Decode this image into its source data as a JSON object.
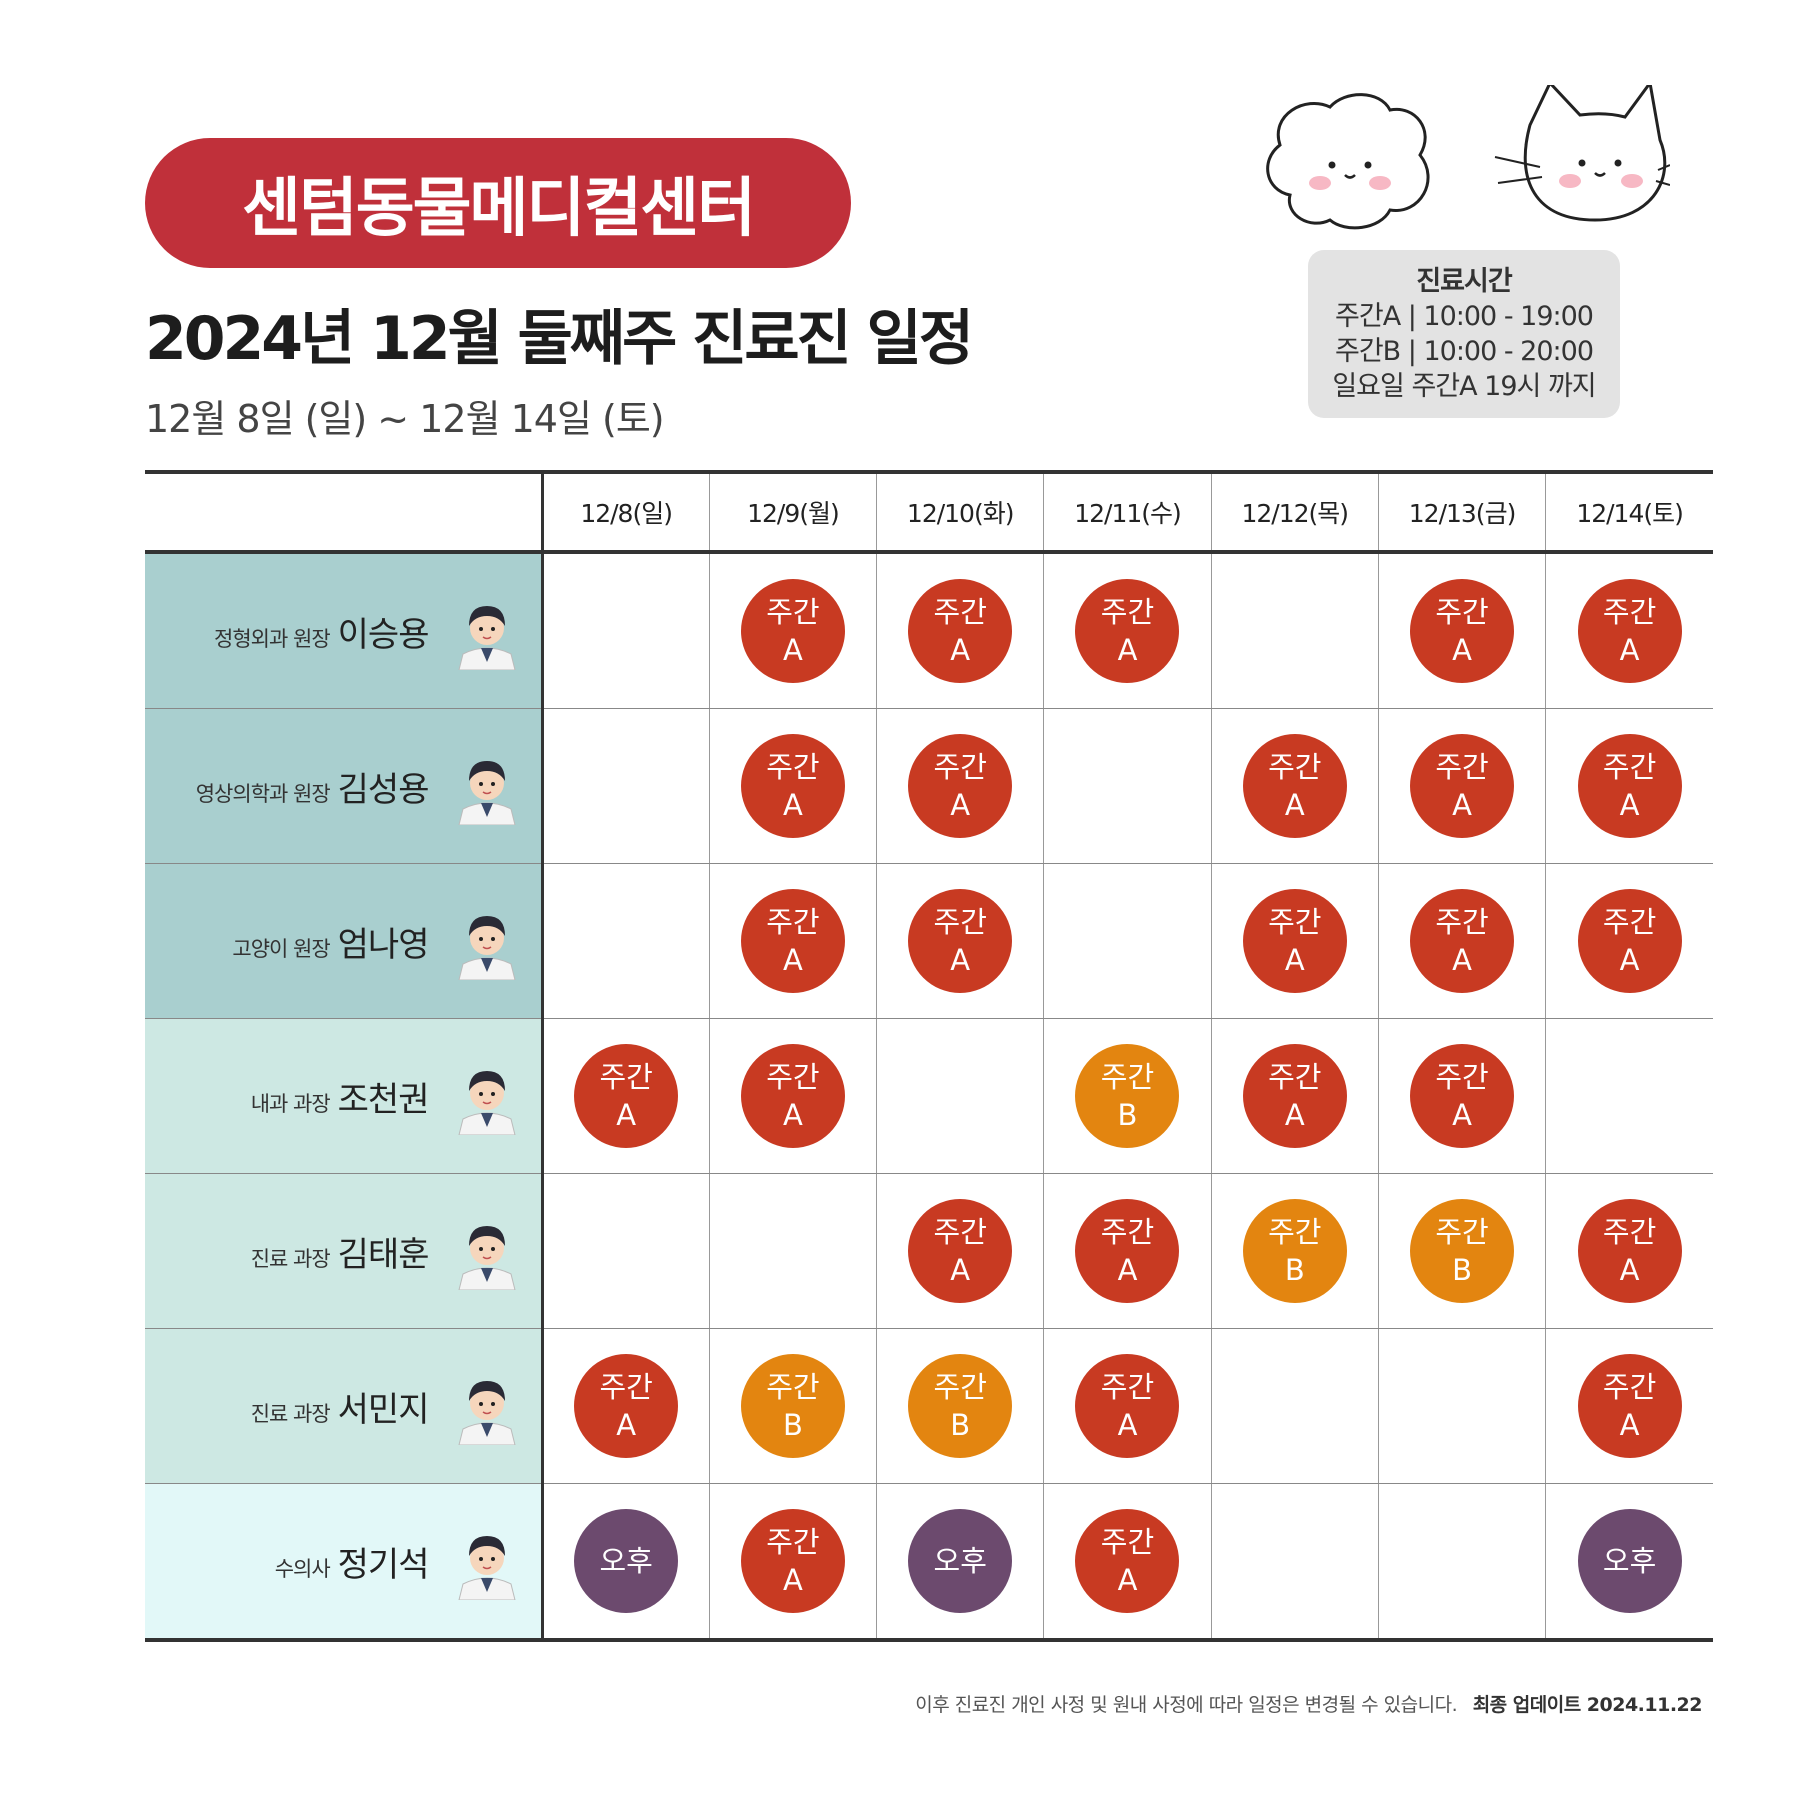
{
  "clinic_name": "센텀동물메디컬센터",
  "title": "2024년 12월 둘째주 진료진 일정",
  "subtitle": "12월 8일 (일) ~ 12월 14일 (토)",
  "hours": {
    "title": "진료시간",
    "line1": "주간A | 10:00 - 19:00",
    "line2": "주간B | 10:00 - 20:00",
    "line3": "일요일 주간A 19시 까지"
  },
  "days": [
    "12/8(일)",
    "12/9(월)",
    "12/10(화)",
    "12/11(수)",
    "12/12(목)",
    "12/13(금)",
    "12/14(토)"
  ],
  "shift_labels": {
    "A": [
      "주간",
      "A"
    ],
    "B": [
      "주간",
      "B"
    ],
    "P": [
      "오후"
    ]
  },
  "colors": {
    "badge": "#c0303a",
    "shift_A": "#c83a22",
    "shift_B": "#e38510",
    "shift_P": "#6c4a6e",
    "row_bg_director": "#a9cfcf",
    "row_bg_manager": "#cde8e3",
    "row_bg_vet": "#e2f8f8"
  },
  "doctors": [
    {
      "role": "정형외과 원장",
      "name": "이승용",
      "tier": "director",
      "schedule": [
        "",
        "A",
        "A",
        "A",
        "",
        "A",
        "A"
      ]
    },
    {
      "role": "영상의학과 원장",
      "name": "김성용",
      "tier": "director",
      "schedule": [
        "",
        "A",
        "A",
        "",
        "A",
        "A",
        "A"
      ]
    },
    {
      "role": "고양이 원장",
      "name": "엄나영",
      "tier": "director",
      "schedule": [
        "",
        "A",
        "A",
        "",
        "A",
        "A",
        "A"
      ]
    },
    {
      "role": "내과 과장",
      "name": "조천권",
      "tier": "manager",
      "schedule": [
        "A",
        "A",
        "",
        "B",
        "A",
        "A",
        ""
      ]
    },
    {
      "role": "진료 과장",
      "name": "김태훈",
      "tier": "manager",
      "schedule": [
        "",
        "",
        "A",
        "A",
        "B",
        "B",
        "A"
      ]
    },
    {
      "role": "진료 과장",
      "name": "서민지",
      "tier": "manager",
      "schedule": [
        "A",
        "B",
        "B",
        "A",
        "",
        "",
        "A"
      ]
    },
    {
      "role": "수의사",
      "name": "정기석",
      "tier": "vet",
      "schedule": [
        "P",
        "A",
        "P",
        "A",
        "",
        "",
        "P"
      ]
    }
  ],
  "footer": {
    "notice": "이후 진료진 개인 사정 및 원내 사정에 따라 일정은 변경될 수 있습니다.",
    "updated": "최종 업데이트  2024.11.22"
  }
}
